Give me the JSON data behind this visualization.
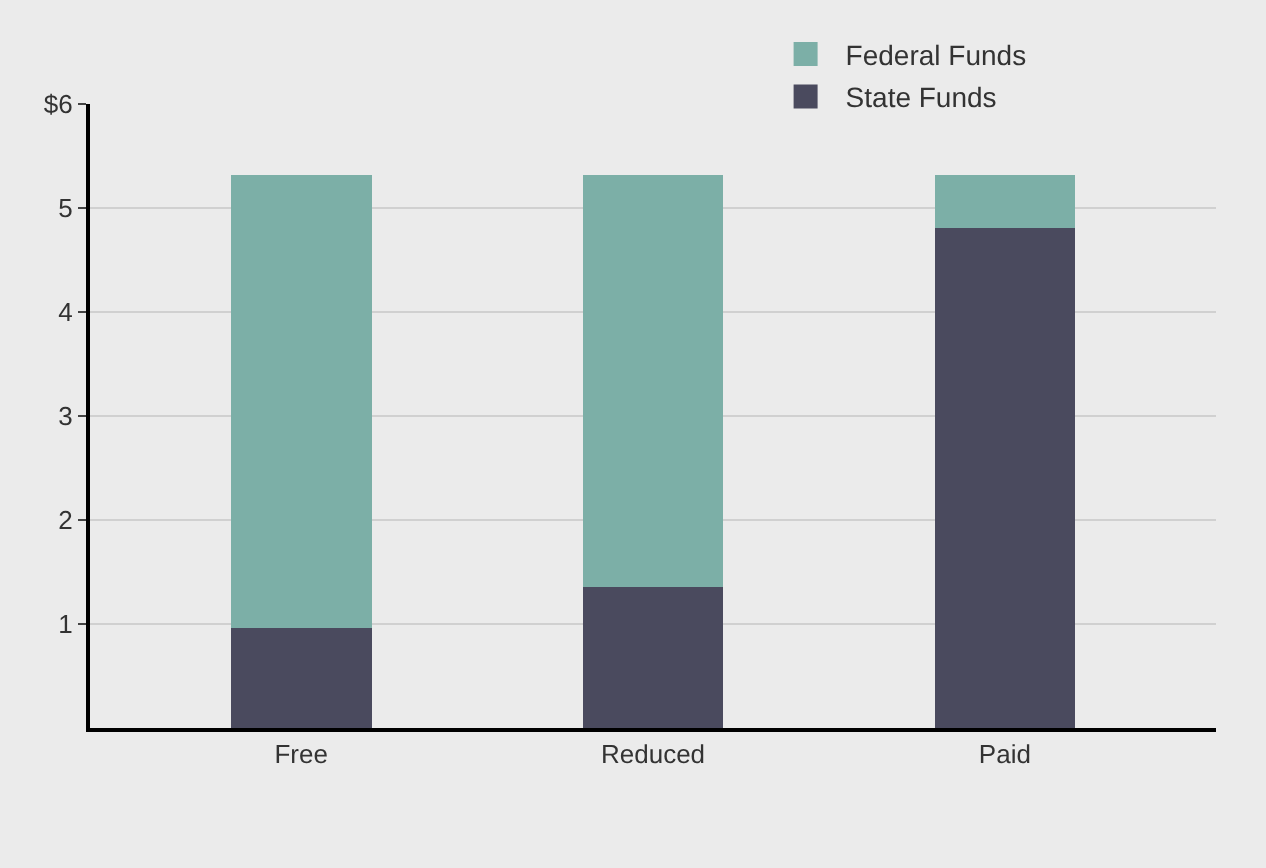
{
  "chart_data": {
    "type": "bar",
    "stacked": true,
    "categories": [
      "Free",
      "Reduced",
      "Paid"
    ],
    "series": [
      {
        "name": "State Funds",
        "color": "#4a4a5e",
        "values": [
          0.96,
          1.36,
          4.81
        ]
      },
      {
        "name": "Federal Funds",
        "color": "#7cafa7",
        "values": [
          4.36,
          3.96,
          0.51
        ]
      }
    ],
    "ylim": [
      0,
      6
    ],
    "yticks": [
      1,
      2,
      3,
      4,
      {
        "value": 6,
        "label": "$6"
      },
      5
    ],
    "grid": "y",
    "legend": "top right"
  }
}
